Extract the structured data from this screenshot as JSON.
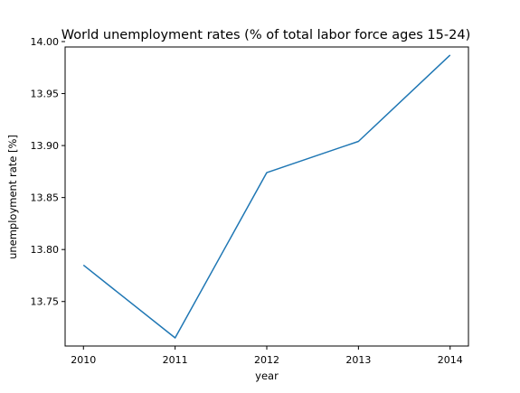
{
  "chart_data": {
    "type": "line",
    "title": "World unemployment rates (% of total labor force ages 15-24)",
    "xlabel": "year",
    "ylabel": "unemployment rate [%]",
    "x": [
      2010,
      2011,
      2012,
      2013,
      2014
    ],
    "series": [
      {
        "values": [
          13.785,
          13.715,
          13.874,
          13.904,
          13.987
        ],
        "color": "#1f77b4"
      }
    ],
    "xlim": [
      2009.8,
      2014.2
    ],
    "ylim": [
      13.7072,
      13.9948
    ],
    "x_ticks": [
      2010,
      2011,
      2012,
      2013,
      2014
    ],
    "x_tick_labels": [
      "2010",
      "2011",
      "2012",
      "2013",
      "2014"
    ],
    "y_ticks": [
      13.75,
      13.8,
      13.85,
      13.9,
      13.95,
      14.0
    ],
    "y_tick_labels": [
      "13.75",
      "13.80",
      "13.85",
      "13.90",
      "13.95",
      "14.00"
    ],
    "grid": false,
    "legend": "none"
  }
}
